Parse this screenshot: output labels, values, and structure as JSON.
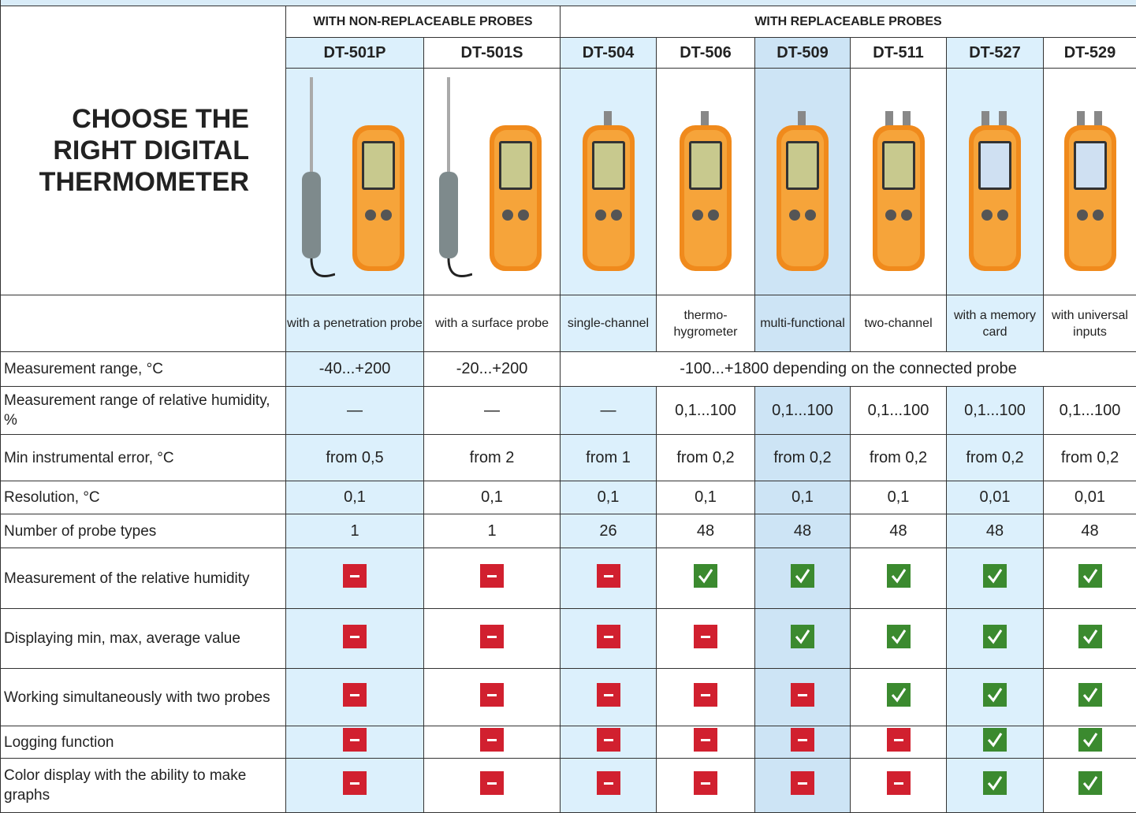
{
  "header": {
    "title_lines": [
      "CHOOSE THE",
      "RIGHT DIGITAL",
      "THERMOMETER"
    ],
    "groups": [
      "WITH NON-REPLACEABLE PROBES",
      "WITH REPLACEABLE PROBES"
    ]
  },
  "table": {
    "models": [
      "DT-501P",
      "DT-501S",
      "DT-504",
      "DT-506",
      "DT-509",
      "DT-511",
      "DT-527",
      "DT-529"
    ],
    "descriptions": [
      "with a penetration probe",
      "with a surface probe",
      "single-channel",
      "thermo-hygrometer",
      "multi-functional",
      "two-channel",
      "with a memory card",
      "with universal inputs"
    ],
    "rows": [
      {
        "label": "Measurement range, °C",
        "cells": [
          "-40...+200",
          "-20...+200",
          "-100...+1800  depending on the connected probe"
        ]
      },
      {
        "label": "Measurement range of relative humidity, %",
        "cells": [
          "—",
          "—",
          "—",
          "0,1...100",
          "0,1...100",
          "0,1...100",
          "0,1...100",
          "0,1...100"
        ]
      },
      {
        "label": "Min instrumental error, °C",
        "cells": [
          "from 0,5",
          "from 2",
          "from 1",
          "from 0,2",
          "from 0,2",
          "from 0,2",
          "from 0,2",
          "from 0,2"
        ]
      },
      {
        "label": "Resolution, °C",
        "cells": [
          "0,1",
          "0,1",
          "0,1",
          "0,1",
          "0,1",
          "0,1",
          "0,01",
          "0,01"
        ]
      },
      {
        "label": "Number of probe types",
        "cells": [
          1,
          1,
          26,
          48,
          48,
          48,
          48,
          48
        ]
      },
      {
        "label": "Measurement of the relative humidity",
        "checks": [
          false,
          false,
          false,
          true,
          true,
          true,
          true,
          true
        ]
      },
      {
        "label": "Displaying min, max, average value",
        "checks": [
          false,
          false,
          false,
          false,
          true,
          true,
          true,
          true
        ]
      },
      {
        "label": "Working simultaneously with two probes",
        "checks": [
          false,
          false,
          false,
          false,
          false,
          true,
          true,
          true
        ]
      },
      {
        "label": "Logging function",
        "checks": [
          false,
          false,
          false,
          false,
          false,
          false,
          true,
          true
        ]
      },
      {
        "label": "Color display with the ability to make graphs",
        "checks": [
          false,
          false,
          false,
          false,
          false,
          false,
          true,
          true
        ]
      }
    ]
  }
}
